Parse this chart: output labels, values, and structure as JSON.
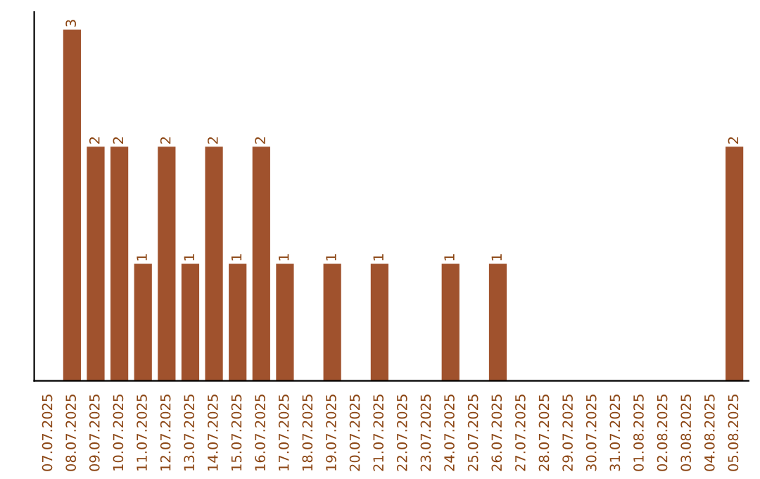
{
  "chart_data": {
    "type": "bar",
    "categories": [
      "07.07.2025",
      "08.07.2025",
      "09.07.2025",
      "10.07.2025",
      "11.07.2025",
      "12.07.2025",
      "13.07.2025",
      "14.07.2025",
      "15.07.2025",
      "16.07.2025",
      "17.07.2025",
      "18.07.2025",
      "19.07.2025",
      "20.07.2025",
      "21.07.2025",
      "22.07.2025",
      "23.07.2025",
      "24.07.2025",
      "25.07.2025",
      "26.07.2025",
      "27.07.2025",
      "28.07.2025",
      "29.07.2025",
      "30.07.2025",
      "31.07.2025",
      "01.08.2025",
      "02.08.2025",
      "03.08.2025",
      "04.08.2025",
      "05.08.2025"
    ],
    "values": [
      0,
      3,
      2,
      2,
      1,
      2,
      1,
      2,
      1,
      2,
      1,
      0,
      1,
      0,
      1,
      0,
      0,
      1,
      0,
      1,
      0,
      0,
      0,
      0,
      0,
      0,
      0,
      0,
      0,
      2
    ],
    "value_labels": [
      null,
      "3",
      "2",
      "2",
      "1",
      "2",
      "1",
      "2",
      "1",
      "2",
      "1",
      null,
      "1",
      null,
      "1",
      null,
      null,
      "1",
      null,
      "1",
      null,
      null,
      null,
      null,
      null,
      null,
      null,
      null,
      null,
      "2"
    ],
    "color": "#a0522d",
    "grid": false,
    "legend": false
  }
}
